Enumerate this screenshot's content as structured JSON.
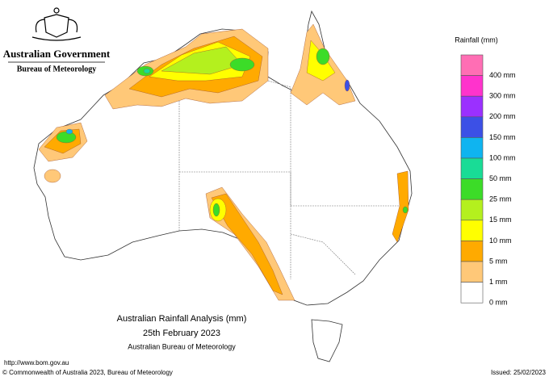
{
  "header": {
    "government": "Australian Government",
    "bureau": "Bureau of Meteorology"
  },
  "legend": {
    "title": "Rainfall (mm)",
    "items": [
      {
        "color": "#ff6eb4",
        "label": "400 mm"
      },
      {
        "color": "#ff33cc",
        "label": "300 mm"
      },
      {
        "color": "#9b30ff",
        "label": "200 mm"
      },
      {
        "color": "#3c50e6",
        "label": "150 mm"
      },
      {
        "color": "#0fb4f0",
        "label": "100 mm"
      },
      {
        "color": "#19dc96",
        "label": "50 mm"
      },
      {
        "color": "#3cdc28",
        "label": "25 mm"
      },
      {
        "color": "#b4f01e",
        "label": "15 mm"
      },
      {
        "color": "#ffff00",
        "label": "10 mm"
      },
      {
        "color": "#ffaa00",
        "label": "5 mm"
      },
      {
        "color": "#ffc878",
        "label": "1 mm"
      },
      {
        "color": "#ffffff",
        "label": "0 mm"
      }
    ]
  },
  "caption": {
    "title": "Australian Rainfall Analysis (mm)",
    "date": "25th February 2023",
    "source": "Australian Bureau of Meteorology"
  },
  "footer": {
    "url": "http://www.bom.gov.au",
    "copyright": "© Commonwealth of Australia 2023, Bureau of Meteorology",
    "issued": "Issued: 25/02/2023"
  }
}
